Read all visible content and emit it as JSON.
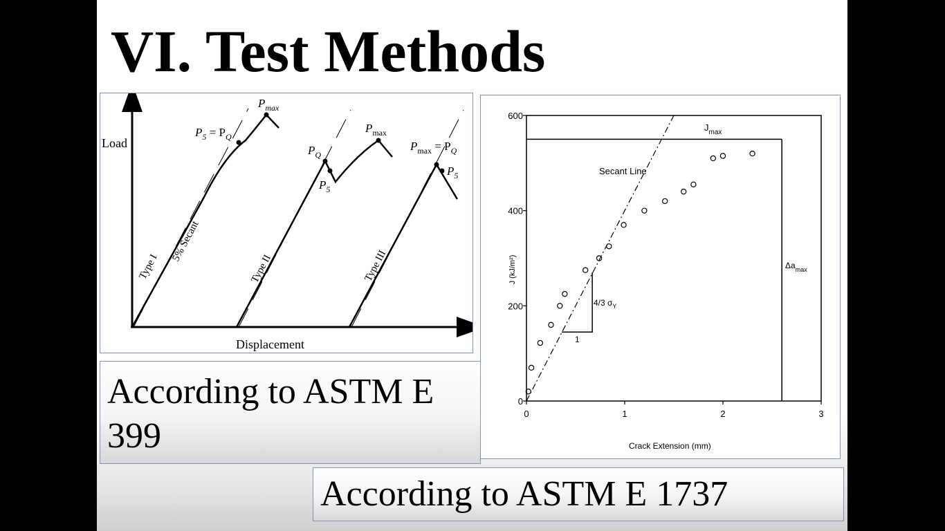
{
  "slide": {
    "title": "VI. Test Methods",
    "caption_left": "According to ASTM E 399",
    "caption_right": "According to ASTM E 1737"
  },
  "load_diagram": {
    "y_axis_label": "Load",
    "x_axis_label": "Displacement",
    "type1": {
      "label": "Type I",
      "secant_label": "5% Secant",
      "pmax": "P",
      "pmax_sub": "max",
      "p5_text": "P",
      "p5_sub": "5",
      "pq_eq": " = P",
      "pq_sub": "Q"
    },
    "type2": {
      "label": "Type II",
      "pq": "P",
      "pq_sub": "Q",
      "p5": "P",
      "p5_sub": "5",
      "pmax": "P",
      "pmax_sub": "max"
    },
    "type3": {
      "label": "Type III",
      "pmax": "P",
      "pmax_sub": "max",
      "eq": " = P",
      "eq_sub": "Q",
      "p5": "P",
      "p5_sub": "5"
    }
  },
  "chart_data": {
    "type": "scatter",
    "xlabel": "Crack Extension (mm)",
    "ylabel": "J (kJ/m²)",
    "xlim": [
      0,
      3
    ],
    "ylim": [
      0,
      600
    ],
    "x_ticks": [
      "0",
      "1",
      "2",
      "3"
    ],
    "y_ticks": [
      "0",
      "200",
      "400",
      "600"
    ],
    "points": [
      {
        "x": 0.02,
        "y": 20
      },
      {
        "x": 0.05,
        "y": 70
      },
      {
        "x": 0.14,
        "y": 122
      },
      {
        "x": 0.25,
        "y": 160
      },
      {
        "x": 0.34,
        "y": 200
      },
      {
        "x": 0.39,
        "y": 225
      },
      {
        "x": 0.6,
        "y": 275
      },
      {
        "x": 0.74,
        "y": 300
      },
      {
        "x": 0.84,
        "y": 325
      },
      {
        "x": 0.99,
        "y": 370
      },
      {
        "x": 1.2,
        "y": 400
      },
      {
        "x": 1.41,
        "y": 420
      },
      {
        "x": 1.6,
        "y": 440
      },
      {
        "x": 1.7,
        "y": 455
      },
      {
        "x": 1.9,
        "y": 510
      },
      {
        "x": 2.0,
        "y": 515
      },
      {
        "x": 2.3,
        "y": 520
      }
    ],
    "secant_line": {
      "label": "Secant Line",
      "x0": 0,
      "y0": 0,
      "x1": 1.5,
      "y1": 600
    },
    "slope_triangle": {
      "label_top": "4/3 σ",
      "label_sub": "Y",
      "label_run": "1",
      "x0": 0.36,
      "y0": 145,
      "x1": 0.67,
      "y1": 270
    },
    "jmax": {
      "label": "J",
      "sub": "max",
      "value": 550
    },
    "da_max": {
      "label": "Δa",
      "sub": "max",
      "value": 2.6
    }
  }
}
